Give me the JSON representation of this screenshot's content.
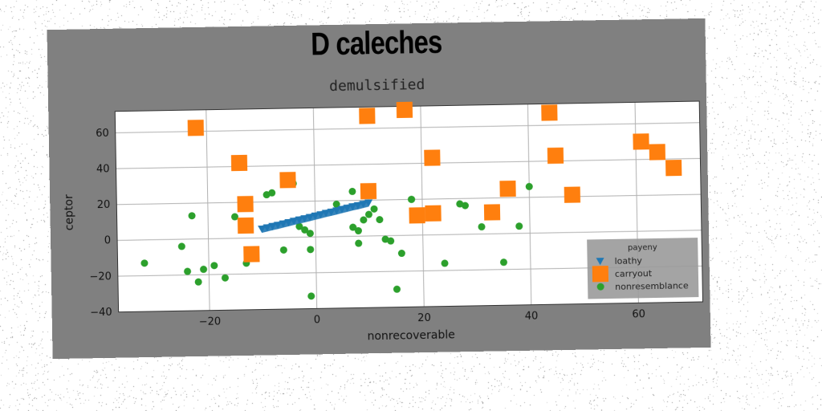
{
  "figure": {
    "title": "D caleches",
    "subtitle": "demulsified"
  },
  "chart_data": {
    "type": "scatter",
    "title": "demulsified",
    "xlabel": "nonrecoverable",
    "ylabel": "ceptor",
    "xlim": [
      -37,
      72
    ],
    "ylim": [
      -40,
      72
    ],
    "xticks": [
      -20,
      0,
      20,
      40,
      60
    ],
    "yticks": [
      -40,
      -20,
      0,
      20,
      40,
      60
    ],
    "grid": true,
    "legend": {
      "title": "payeny",
      "placement": "lower-right"
    },
    "colors": {
      "background": "#808080",
      "plot": "#ffffff",
      "grid": "#b0b0b0"
    },
    "series": [
      {
        "name": "loathy",
        "marker": "triangle-down",
        "color": "#1f77b4",
        "x": [
          -10,
          -9,
          -8,
          -7,
          -6,
          -5,
          -4,
          -3,
          -2,
          -1,
          0,
          1,
          2,
          3,
          4,
          5,
          6,
          7,
          8,
          9,
          10
        ],
        "y": [
          5.0,
          5.7,
          6.4,
          7.0,
          7.7,
          8.4,
          9.1,
          9.8,
          10.4,
          11.1,
          11.8,
          12.5,
          13.2,
          13.8,
          14.5,
          15.2,
          15.9,
          16.6,
          17.2,
          17.9,
          18.6
        ]
      },
      {
        "name": "carryout",
        "marker": "square",
        "color": "#ff7f0e",
        "x": [
          -22,
          -14,
          -13,
          -13,
          -12,
          -5,
          10,
          10,
          17,
          19,
          22,
          22,
          33,
          36,
          44,
          45,
          48,
          61,
          64,
          67
        ],
        "y": [
          62,
          42,
          19,
          7,
          -9,
          32,
          67,
          25,
          70,
          11,
          43,
          12,
          12,
          25,
          67,
          43,
          21,
          50,
          44,
          35
        ]
      },
      {
        "name": "nonresemblance",
        "marker": "circle",
        "color": "#2ca02c",
        "x": [
          -32,
          -25,
          -24,
          -23,
          -22,
          -21,
          -19,
          -17,
          -15,
          -13,
          -12,
          -9,
          -8,
          -6,
          -4,
          -3,
          -2,
          -1,
          -1,
          -1,
          4,
          7,
          7,
          8,
          8,
          9,
          10,
          11,
          12,
          13,
          14,
          15,
          16,
          18,
          18,
          19,
          24,
          27,
          28,
          31,
          35,
          38,
          40
        ],
        "y": [
          -13,
          -4,
          -18,
          13,
          -24,
          -17,
          -15,
          -22,
          12,
          -14,
          -8,
          24,
          25,
          -7,
          30,
          6,
          4,
          2,
          -7,
          -33,
          18,
          25,
          5,
          3,
          -4,
          9,
          12,
          15,
          9,
          -2,
          -3,
          -30,
          -10,
          20,
          20,
          13,
          -16,
          17,
          16,
          4,
          -16,
          4,
          26
        ]
      }
    ]
  }
}
